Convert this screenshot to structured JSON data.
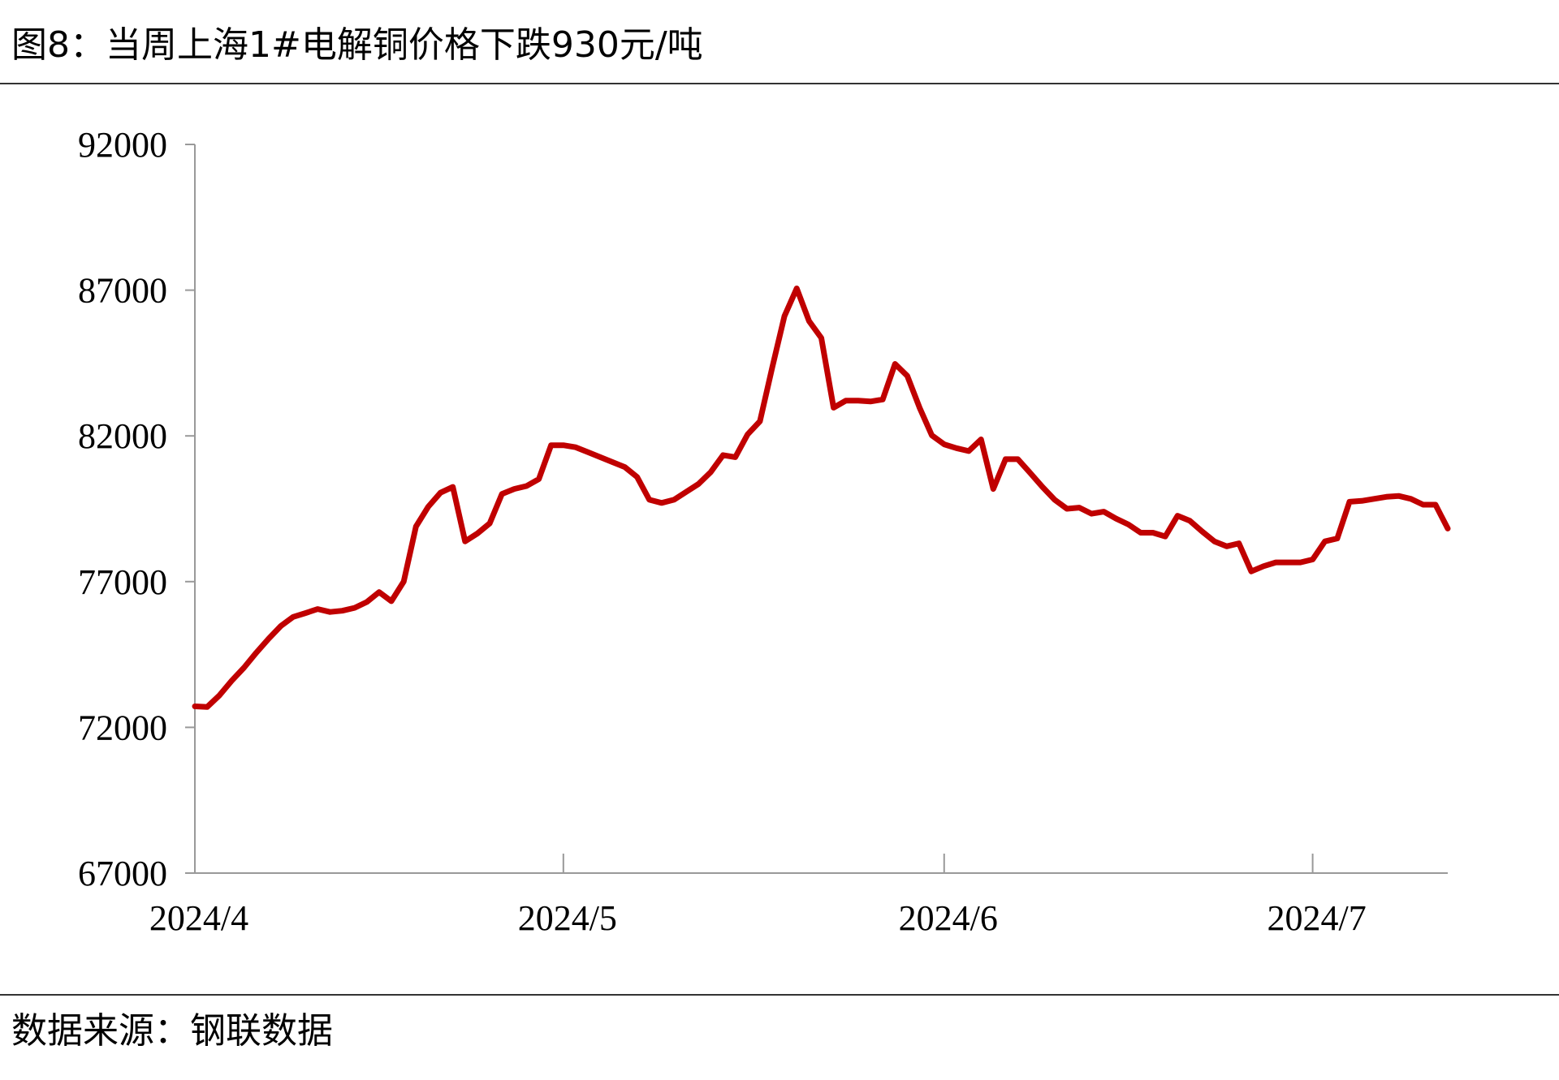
{
  "chart_data": {
    "type": "line",
    "title": "图8：当周上海1#电解铜价格下跌930元/吨",
    "source": "数据来源：钢联数据",
    "categories": [
      "2024/4",
      null,
      null,
      null,
      null,
      null,
      null,
      null,
      null,
      null,
      null,
      null,
      null,
      null,
      null,
      null,
      null,
      null,
      null,
      null,
      null,
      null,
      null,
      null,
      null,
      null,
      null,
      null,
      null,
      null,
      "2024/5",
      null,
      null,
      null,
      null,
      null,
      null,
      null,
      null,
      null,
      null,
      null,
      null,
      null,
      null,
      null,
      null,
      null,
      null,
      null,
      null,
      null,
      null,
      null,
      null,
      null,
      null,
      null,
      null,
      null,
      null,
      "2024/6",
      null,
      null,
      null,
      null,
      null,
      null,
      null,
      null,
      null,
      null,
      null,
      null,
      null,
      null,
      null,
      null,
      null,
      null,
      null,
      null,
      null,
      null,
      null,
      null,
      null,
      null,
      null,
      null,
      null,
      "2024/7",
      null,
      null,
      null,
      null,
      null,
      null,
      null,
      null,
      null,
      null,
      null
    ],
    "values": [
      72720,
      72700,
      73100,
      73600,
      74050,
      74560,
      75040,
      75480,
      75790,
      75920,
      76060,
      75960,
      76000,
      76100,
      76300,
      76640,
      76330,
      77000,
      78890,
      79570,
      80050,
      80250,
      78380,
      78650,
      79000,
      80010,
      80180,
      80280,
      80520,
      81680,
      81680,
      81610,
      81440,
      81270,
      81100,
      80930,
      80590,
      79810,
      79700,
      79810,
      80080,
      80350,
      80760,
      81340,
      81270,
      82050,
      82500,
      84340,
      86110,
      87060,
      85940,
      85360,
      82970,
      83210,
      83210,
      83180,
      83250,
      84470,
      84060,
      82970,
      82020,
      81710,
      81580,
      81480,
      81880,
      80180,
      81200,
      81200,
      80730,
      80250,
      79810,
      79500,
      79540,
      79330,
      79400,
      79160,
      78960,
      78680,
      78680,
      78550,
      79260,
      79090,
      78720,
      78380,
      78210,
      78310,
      77350,
      77530,
      77660,
      77660,
      77660,
      77760,
      78380,
      78480,
      79740,
      79770,
      79840,
      79910,
      79940,
      79840,
      79640,
      79640,
      78820
    ],
    "color": "#c00000",
    "ylim": [
      67000,
      92000
    ],
    "yticks": [
      67000,
      72000,
      77000,
      82000,
      87000,
      92000
    ]
  }
}
